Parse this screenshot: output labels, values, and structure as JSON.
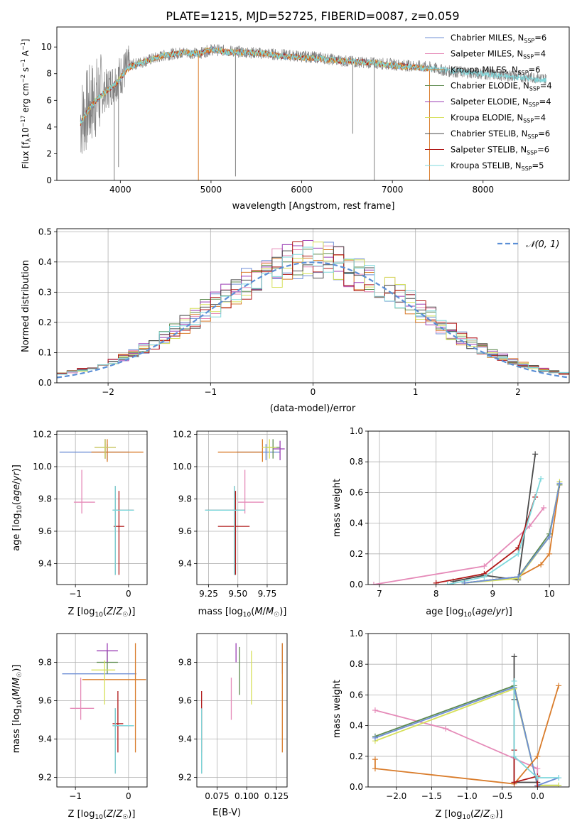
{
  "title": "PLATE=1215, MJD=52725, FIBERID=0087, z=0.059",
  "colors": {
    "Chabrier MILES": "#6f8fd6",
    "Salpeter MILES": "#e58ab8",
    "Kroupa MILES": "#d97c2b",
    "Chabrier ELODIE": "#5c8a4e",
    "Salpeter ELODIE": "#9b3fb5",
    "Kroupa ELODIE": "#d6e05a",
    "Chabrier STELIB": "#4a4a4a",
    "Salpeter STELIB": "#b01818",
    "Kroupa STELIB": "#7ed8dc",
    "data": "#808080",
    "normal": "#5b8fd6"
  },
  "chart_data": [
    {
      "id": "spectrum",
      "type": "line",
      "xlabel": "wavelength [Angstrom, rest frame]",
      "ylabel": "Flux [f_λ10^-17 erg cm^-2 s^-1 A^-1]",
      "xlim": [
        3300,
        8950
      ],
      "ylim": [
        0,
        11.5
      ],
      "xticks": [
        4000,
        5000,
        6000,
        7000,
        8000
      ],
      "yticks": [
        0,
        2,
        4,
        6,
        8,
        10
      ],
      "grid": false,
      "legend_position": "right",
      "legend": [
        {
          "label": "Chabrier MILES, N",
          "n": "6"
        },
        {
          "label": "Salpeter MILES, N",
          "n": "4"
        },
        {
          "label": "Kroupa MILES, N",
          "n": "6"
        },
        {
          "label": "Chabrier ELODIE, N",
          "n": "4"
        },
        {
          "label": "Salpeter ELODIE, N",
          "n": "4"
        },
        {
          "label": "Kroupa ELODIE, N",
          "n": "4"
        },
        {
          "label": "Chabrier STELIB, N",
          "n": "6"
        },
        {
          "label": "Salpeter STELIB, N",
          "n": "6"
        },
        {
          "label": "Kroupa STELIB, N",
          "n": "5"
        }
      ],
      "legend_sub": "SSP",
      "data_curve": {
        "x": [
          3560,
          3700,
          3850,
          3950,
          4100,
          4300,
          4500,
          4700,
          4861,
          5000,
          5200,
          5400,
          5600,
          5800,
          6000,
          6200,
          6400,
          6563,
          6800,
          7000,
          7200,
          7400,
          7600,
          7800,
          8000,
          8200,
          8400,
          8600,
          8700
        ],
        "y": [
          4.5,
          6.0,
          6.8,
          7.5,
          8.6,
          9.0,
          9.4,
          9.6,
          9.5,
          9.8,
          9.7,
          9.6,
          9.5,
          9.4,
          9.3,
          9.2,
          9.0,
          8.9,
          8.8,
          8.7,
          8.6,
          8.5,
          8.2,
          8.1,
          8.0,
          7.9,
          7.8,
          7.7,
          7.6
        ]
      },
      "model_curve": {
        "x": [
          3560,
          3700,
          3850,
          3950,
          4100,
          4300,
          4500,
          4700,
          4861,
          5000,
          5200,
          5400,
          5600,
          5800,
          6000,
          6200,
          6400,
          6563,
          6800,
          7000,
          7200,
          7400
        ],
        "y": [
          4.3,
          5.8,
          6.7,
          7.3,
          8.5,
          9.0,
          9.4,
          9.6,
          9.5,
          9.8,
          9.6,
          9.6,
          9.5,
          9.3,
          9.2,
          9.1,
          9.0,
          8.9,
          8.8,
          8.6,
          8.5,
          8.4
        ]
      }
    },
    {
      "id": "residuals",
      "type": "area",
      "xlabel": "(data-model)/error",
      "ylabel": "Normed distribution",
      "xlim": [
        -2.5,
        2.5
      ],
      "ylim": [
        0,
        0.51
      ],
      "xticks": [
        -2,
        -1,
        0,
        1,
        2
      ],
      "yticks": [
        0.0,
        0.1,
        0.2,
        0.3,
        0.4,
        0.5
      ],
      "grid": true,
      "legend_position": "top-right",
      "legend": [
        {
          "label": "𝒩(0, 1)"
        }
      ],
      "bin_width": 0.1
    },
    {
      "id": "age_vs_Z",
      "type": "scatter",
      "xlabel": "Z [log10(Z/Z☉)]",
      "ylabel": "age [log10(age/yr)]",
      "xlim": [
        -1.35,
        0.35
      ],
      "ylim": [
        9.27,
        10.22
      ],
      "xticks": [
        -1,
        0
      ],
      "yticks": [
        9.4,
        9.6,
        9.8,
        10.0,
        10.2
      ],
      "grid": true,
      "points": [
        {
          "series": "Chabrier MILES",
          "x": -0.4,
          "xerr": [
            0.9,
            0.4
          ],
          "y": 10.09,
          "yerr": [
            0.05,
            0.05
          ]
        },
        {
          "series": "Salpeter MILES",
          "x": -0.88,
          "xerr": [
            0.15,
            0.25
          ],
          "y": 9.78,
          "yerr": [
            0.07,
            0.2
          ]
        },
        {
          "series": "Kroupa MILES",
          "x": -0.4,
          "xerr": [
            0.3,
            0.68
          ],
          "y": 10.09,
          "yerr": [
            0.06,
            0.08
          ]
        },
        {
          "series": "Chabrier ELODIE",
          "x": -0.44,
          "xerr": [
            0.2,
            0.2
          ],
          "y": 10.12,
          "yerr": [
            0.07,
            0.05
          ]
        },
        {
          "series": "Salpeter ELODIE",
          "x": -0.44,
          "xerr": [
            0.2,
            0.2
          ],
          "y": 10.12,
          "yerr": [
            0.07,
            0.05
          ]
        },
        {
          "series": "Kroupa ELODIE",
          "x": -0.44,
          "xerr": [
            0.2,
            0.2
          ],
          "y": 10.12,
          "yerr": [
            0.07,
            0.05
          ]
        },
        {
          "series": "Chabrier STELIB",
          "x": -0.25,
          "xerr": [
            0.05,
            0.35
          ],
          "y": 9.73,
          "yerr": [
            0.4,
            0.15
          ]
        },
        {
          "series": "Salpeter STELIB",
          "x": -0.18,
          "xerr": [
            0.1,
            0.1
          ],
          "y": 9.63,
          "yerr": [
            0.3,
            0.22
          ]
        },
        {
          "series": "Kroupa STELIB",
          "x": -0.25,
          "xerr": [
            0.05,
            0.35
          ],
          "y": 9.73,
          "yerr": [
            0.4,
            0.15
          ]
        }
      ]
    },
    {
      "id": "age_vs_mass",
      "type": "scatter",
      "xlabel": "mass [log10(M/M☉)]",
      "ylabel": "",
      "xlim": [
        9.15,
        9.92
      ],
      "ylim": [
        9.27,
        10.22
      ],
      "xticks": [
        9.25,
        9.5,
        9.75
      ],
      "yticks": [
        9.4,
        9.6,
        9.8,
        10.0,
        10.2
      ],
      "grid": true,
      "points": [
        {
          "series": "Chabrier MILES",
          "x": 9.74,
          "xerr": [
            0.25,
            0.12
          ],
          "y": 10.09,
          "yerr": [
            0.05,
            0.05
          ]
        },
        {
          "series": "Salpeter MILES",
          "x": 9.56,
          "xerr": [
            0.06,
            0.16
          ],
          "y": 9.78,
          "yerr": [
            0.07,
            0.2
          ]
        },
        {
          "series": "Kroupa MILES",
          "x": 9.71,
          "xerr": [
            0.38,
            0.0
          ],
          "y": 10.09,
          "yerr": [
            0.06,
            0.08
          ]
        },
        {
          "series": "Chabrier ELODIE",
          "x": 9.8,
          "xerr": [
            0.06,
            0.06
          ],
          "y": 10.12,
          "yerr": [
            0.07,
            0.05
          ]
        },
        {
          "series": "Salpeter ELODIE",
          "x": 9.86,
          "xerr": [
            0.06,
            0.04
          ],
          "y": 10.11,
          "yerr": [
            0.07,
            0.05
          ]
        },
        {
          "series": "Kroupa ELODIE",
          "x": 9.77,
          "xerr": [
            0.06,
            0.06
          ],
          "y": 10.12,
          "yerr": [
            0.07,
            0.05
          ]
        },
        {
          "series": "Chabrier STELIB",
          "x": 9.47,
          "xerr": [
            0.25,
            0.09
          ],
          "y": 9.73,
          "yerr": [
            0.4,
            0.15
          ]
        },
        {
          "series": "Salpeter STELIB",
          "x": 9.48,
          "xerr": [
            0.15,
            0.12
          ],
          "y": 9.63,
          "yerr": [
            0.3,
            0.22
          ]
        },
        {
          "series": "Kroupa STELIB",
          "x": 9.47,
          "xerr": [
            0.25,
            0.09
          ],
          "y": 9.73,
          "yerr": [
            0.4,
            0.15
          ]
        }
      ]
    },
    {
      "id": "weight_vs_age",
      "type": "line",
      "xlabel": "age [log10(age/yr)]",
      "ylabel": "mass weight",
      "xlim": [
        6.8,
        10.35
      ],
      "ylim": [
        0,
        1.0
      ],
      "xticks": [
        7,
        8,
        9,
        10
      ],
      "yticks": [
        0.0,
        0.2,
        0.4,
        0.6,
        0.8,
        1.0
      ],
      "grid": true,
      "series": [
        {
          "name": "Salpeter MILES",
          "x": [
            6.9,
            8.85,
            9.65,
            9.9
          ],
          "y": [
            0.0,
            0.12,
            0.38,
            0.5
          ]
        },
        {
          "name": "Chabrier STELIB",
          "x": [
            8.3,
            8.85,
            9.45,
            9.75
          ],
          "y": [
            0.02,
            0.06,
            0.03,
            0.85
          ]
        },
        {
          "name": "Salpeter STELIB",
          "x": [
            8.0,
            8.85,
            9.45,
            9.75
          ],
          "y": [
            0.01,
            0.07,
            0.24,
            0.57
          ]
        },
        {
          "name": "Kroupa STELIB",
          "x": [
            8.2,
            8.85,
            9.45,
            9.85
          ],
          "y": [
            0.0,
            0.05,
            0.2,
            0.69
          ]
        },
        {
          "name": "Kroupa MILES",
          "x": [
            8.5,
            9.45,
            9.85,
            10.0,
            10.18
          ],
          "y": [
            0.01,
            0.05,
            0.13,
            0.2,
            0.65
          ]
        },
        {
          "name": "Chabrier ELODIE",
          "x": [
            8.5,
            9.45,
            10.0,
            10.18
          ],
          "y": [
            0.01,
            0.05,
            0.33,
            0.65
          ]
        },
        {
          "name": "Kroupa ELODIE",
          "x": [
            8.5,
            9.45,
            10.0,
            10.18
          ],
          "y": [
            0.01,
            0.04,
            0.31,
            0.67
          ]
        },
        {
          "name": "Chabrier MILES",
          "x": [
            8.5,
            9.45,
            10.0,
            10.18
          ],
          "y": [
            0.01,
            0.05,
            0.31,
            0.66
          ]
        }
      ]
    },
    {
      "id": "mass_vs_Z",
      "type": "scatter",
      "xlabel": "Z [log10(Z/Z☉)]",
      "ylabel": "mass [log10(M/M☉)]",
      "xlim": [
        -1.35,
        0.35
      ],
      "ylim": [
        9.15,
        9.95
      ],
      "xticks": [
        -1,
        0
      ],
      "yticks": [
        9.2,
        9.4,
        9.6,
        9.8
      ],
      "grid": true,
      "points": [
        {
          "series": "Chabrier MILES",
          "x": -0.4,
          "xerr": [
            0.85,
            0.55
          ],
          "y": 9.74,
          "yerr": [
            0.0,
            0.0
          ]
        },
        {
          "series": "Salpeter MILES",
          "x": -0.9,
          "xerr": [
            0.2,
            0.25
          ],
          "y": 9.56,
          "yerr": [
            0.06,
            0.16
          ]
        },
        {
          "series": "Kroupa MILES",
          "x": 0.13,
          "xerr": [
            1.0,
            0.2
          ],
          "y": 9.71,
          "yerr": [
            0.38,
            0.19
          ]
        },
        {
          "series": "Chabrier ELODIE",
          "x": -0.4,
          "xerr": [
            0.2,
            0.2
          ],
          "y": 9.8,
          "yerr": [
            0.06,
            0.06
          ]
        },
        {
          "series": "Salpeter ELODIE",
          "x": -0.4,
          "xerr": [
            0.2,
            0.2
          ],
          "y": 9.86,
          "yerr": [
            0.06,
            0.04
          ]
        },
        {
          "series": "Kroupa ELODIE",
          "x": -0.45,
          "xerr": [
            0.25,
            0.2
          ],
          "y": 9.76,
          "yerr": [
            0.18,
            0.05
          ]
        },
        {
          "series": "Chabrier STELIB",
          "x": -0.25,
          "xerr": [
            0.05,
            0.35
          ],
          "y": 9.47,
          "yerr": [
            0.25,
            0.09
          ]
        },
        {
          "series": "Salpeter STELIB",
          "x": -0.2,
          "xerr": [
            0.1,
            0.1
          ],
          "y": 9.48,
          "yerr": [
            0.15,
            0.17
          ]
        },
        {
          "series": "Kroupa STELIB",
          "x": -0.25,
          "xerr": [
            0.05,
            0.35
          ],
          "y": 9.47,
          "yerr": [
            0.25,
            0.09
          ]
        }
      ]
    },
    {
      "id": "mass_vs_EBV",
      "type": "scatter",
      "xlabel": "E(B-V)",
      "ylabel": "",
      "xlim": [
        0.058,
        0.134
      ],
      "ylim": [
        9.15,
        9.95
      ],
      "xticks": [
        0.075,
        0.1,
        0.125
      ],
      "yticks": [
        9.2,
        9.4,
        9.6,
        9.8
      ],
      "grid": true,
      "points": [
        {
          "series": "Chabrier MILES",
          "x": 0.13,
          "y": 9.74,
          "yerr": [
            0.0,
            0.16
          ]
        },
        {
          "series": "Salpeter MILES",
          "x": 0.087,
          "y": 9.56,
          "yerr": [
            0.06,
            0.16
          ]
        },
        {
          "series": "Kroupa MILES",
          "x": 0.13,
          "y": 9.71,
          "yerr": [
            0.38,
            0.19
          ]
        },
        {
          "series": "Chabrier ELODIE",
          "x": 0.094,
          "y": 9.78,
          "yerr": [
            0.15,
            0.1
          ]
        },
        {
          "series": "Salpeter ELODIE",
          "x": 0.091,
          "y": 9.86,
          "yerr": [
            0.06,
            0.04
          ]
        },
        {
          "series": "Kroupa ELODIE",
          "x": 0.104,
          "y": 9.76,
          "yerr": [
            0.18,
            0.1
          ]
        },
        {
          "series": "Chabrier STELIB",
          "x": 0.062,
          "y": 9.47,
          "yerr": [
            0.25,
            0.09
          ]
        },
        {
          "series": "Salpeter STELIB",
          "x": 0.062,
          "y": 9.48,
          "yerr": [
            0.15,
            0.17
          ]
        },
        {
          "series": "Kroupa STELIB",
          "x": 0.062,
          "y": 9.47,
          "yerr": [
            0.25,
            0.09
          ]
        }
      ]
    },
    {
      "id": "weight_vs_Z",
      "type": "line",
      "xlabel": "Z [log10(Z/Z☉)]",
      "ylabel": "mass weight",
      "xlim": [
        -2.4,
        0.45
      ],
      "ylim": [
        0,
        1.0
      ],
      "xticks": [
        -2.0,
        -1.5,
        -1.0,
        -0.5,
        0.0
      ],
      "yticks": [
        0.0,
        0.2,
        0.4,
        0.6,
        0.8,
        1.0
      ],
      "grid": true,
      "series": [
        {
          "name": "Salpeter MILES",
          "x": [
            -2.3,
            -1.3,
            0.0,
            0.0
          ],
          "y": [
            0.5,
            0.38,
            0.12,
            0.0
          ]
        },
        {
          "name": "Chabrier ELODIE",
          "x": [
            -2.3,
            -0.33,
            0.0,
            0.3
          ],
          "y": [
            0.33,
            0.66,
            0.01,
            0.01
          ]
        },
        {
          "name": "Kroupa ELODIE",
          "x": [
            -2.3,
            -0.33,
            0.0,
            0.3
          ],
          "y": [
            0.3,
            0.64,
            0.01,
            0.01
          ]
        },
        {
          "name": "Chabrier MILES",
          "x": [
            -2.3,
            -0.33,
            0.0,
            0.3
          ],
          "y": [
            0.32,
            0.65,
            0.01,
            0.06
          ]
        },
        {
          "name": "Kroupa MILES",
          "x": [
            -2.3,
            -2.3,
            -0.33,
            0.0,
            0.3
          ],
          "y": [
            0.18,
            0.12,
            0.02,
            0.2,
            0.66
          ]
        },
        {
          "name": "Chabrier STELIB",
          "x": [
            -0.33,
            -0.33,
            -0.33,
            0.0
          ],
          "y": [
            0.85,
            0.57,
            0.03,
            0.03
          ]
        },
        {
          "name": "Salpeter STELIB",
          "x": [
            -0.33,
            -0.33,
            0.0,
            0.0
          ],
          "y": [
            0.24,
            0.03,
            0.07,
            0.0
          ]
        },
        {
          "name": "Kroupa STELIB",
          "x": [
            -0.33,
            -0.33,
            0.0,
            0.3
          ],
          "y": [
            0.69,
            0.2,
            0.06,
            0.06
          ]
        }
      ]
    }
  ]
}
